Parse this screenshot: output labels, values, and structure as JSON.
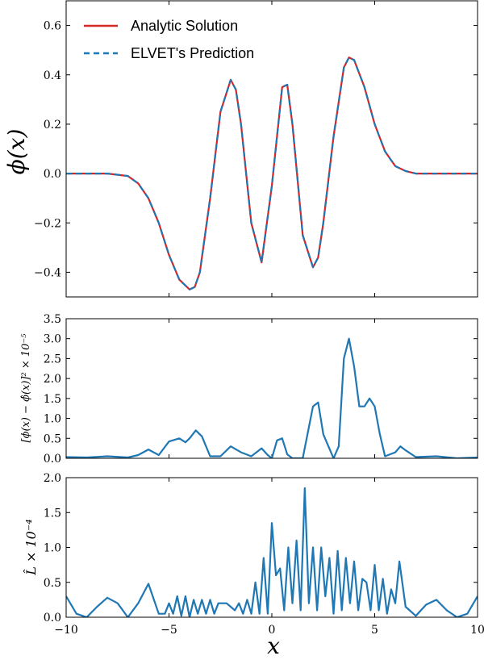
{
  "chart_data": [
    {
      "type": "line",
      "panel": "top",
      "ylabel": "ϕ(x)",
      "xlim": [
        -10,
        10
      ],
      "ylim": [
        -0.5,
        0.7
      ],
      "yticks": [
        "−0.4",
        "−0.2",
        "0.0",
        "0.2",
        "0.4",
        "0.6"
      ],
      "ytick_values": [
        -0.4,
        -0.2,
        0.0,
        0.2,
        0.4,
        0.6
      ],
      "legend_position": "top-left",
      "series": [
        {
          "name": "Analytic Solution",
          "color": "#d62728",
          "style": "solid",
          "x": [
            -10,
            -8,
            -7,
            -6.5,
            -6,
            -5.5,
            -5,
            -4.5,
            -4,
            -3.75,
            -3.5,
            -3,
            -2.5,
            -2,
            -1.75,
            -1.5,
            -1,
            -0.5,
            0,
            0.5,
            0.75,
            1,
            1.5,
            2,
            2.25,
            2.5,
            3,
            3.5,
            3.75,
            4,
            4.5,
            5,
            5.5,
            6,
            6.5,
            7,
            8,
            10
          ],
          "y": [
            0.0,
            0.0,
            -0.01,
            -0.04,
            -0.1,
            -0.2,
            -0.33,
            -0.43,
            -0.47,
            -0.46,
            -0.4,
            -0.1,
            0.25,
            0.38,
            0.34,
            0.2,
            -0.2,
            -0.36,
            -0.05,
            0.35,
            0.36,
            0.2,
            -0.25,
            -0.38,
            -0.34,
            -0.2,
            0.15,
            0.43,
            0.47,
            0.46,
            0.35,
            0.2,
            0.09,
            0.03,
            0.01,
            0.0,
            0.0,
            0.0
          ]
        },
        {
          "name": "ELVET's Prediction",
          "color": "#1f77b4",
          "style": "dashed",
          "x": [
            -10,
            -8,
            -7,
            -6.5,
            -6,
            -5.5,
            -5,
            -4.5,
            -4,
            -3.75,
            -3.5,
            -3,
            -2.5,
            -2,
            -1.75,
            -1.5,
            -1,
            -0.5,
            0,
            0.5,
            0.75,
            1,
            1.5,
            2,
            2.25,
            2.5,
            3,
            3.5,
            3.75,
            4,
            4.5,
            5,
            5.5,
            6,
            6.5,
            7,
            8,
            10
          ],
          "y": [
            0.0,
            0.0,
            -0.01,
            -0.04,
            -0.1,
            -0.2,
            -0.33,
            -0.43,
            -0.47,
            -0.46,
            -0.4,
            -0.1,
            0.25,
            0.38,
            0.34,
            0.2,
            -0.2,
            -0.36,
            -0.05,
            0.35,
            0.36,
            0.2,
            -0.25,
            -0.38,
            -0.34,
            -0.2,
            0.15,
            0.43,
            0.47,
            0.46,
            0.35,
            0.2,
            0.09,
            0.03,
            0.01,
            0.0,
            0.0,
            0.0
          ]
        }
      ]
    },
    {
      "type": "line",
      "panel": "middle",
      "ylabel": "[ϕ(x) − ϕ̂(x)]² × 10⁻⁵",
      "xlim": [
        -10,
        10
      ],
      "ylim": [
        0,
        3.5
      ],
      "yticks": [
        "0.0",
        "0.5",
        "1.0",
        "1.5",
        "2.0",
        "2.5",
        "3.0",
        "3.5"
      ],
      "ytick_values": [
        0,
        0.5,
        1.0,
        1.5,
        2.0,
        2.5,
        3.0,
        3.5
      ],
      "series": [
        {
          "color": "#1f77b4",
          "x": [
            -10,
            -9,
            -8,
            -7,
            -6.5,
            -6,
            -5.5,
            -5,
            -4.5,
            -4.2,
            -4,
            -3.7,
            -3.4,
            -3,
            -2.5,
            -2,
            -1.5,
            -1,
            -0.75,
            -0.5,
            -0.2,
            0,
            0.25,
            0.5,
            0.75,
            1,
            1.5,
            2,
            2.25,
            2.5,
            3,
            3.25,
            3.5,
            3.75,
            4,
            4.25,
            4.5,
            4.75,
            5,
            5.25,
            5.5,
            6,
            6.25,
            6.5,
            7,
            8,
            9,
            10
          ],
          "y": [
            0.03,
            0.02,
            0.05,
            0.02,
            0.08,
            0.22,
            0.08,
            0.42,
            0.5,
            0.4,
            0.5,
            0.7,
            0.55,
            0.05,
            0.05,
            0.3,
            0.15,
            0.05,
            0.15,
            0.25,
            0.08,
            0.0,
            0.45,
            0.5,
            0.1,
            0.0,
            0.0,
            1.3,
            1.4,
            0.6,
            0.0,
            0.3,
            2.5,
            3.0,
            2.3,
            1.3,
            1.3,
            1.5,
            1.3,
            0.6,
            0.05,
            0.15,
            0.3,
            0.2,
            0.03,
            0.05,
            0.0,
            0.02
          ]
        }
      ]
    },
    {
      "type": "line",
      "panel": "bottom",
      "ylabel": "L̂ × 10⁻⁴",
      "xlabel": "x",
      "xlim": [
        -10,
        10
      ],
      "ylim": [
        0,
        2.0
      ],
      "xticks": [
        "−10",
        "−5",
        "0",
        "5",
        "10"
      ],
      "xtick_values": [
        -10,
        -5,
        0,
        5,
        10
      ],
      "yticks": [
        "0.0",
        "0.5",
        "1.0",
        "1.5",
        "2.0"
      ],
      "ytick_values": [
        0,
        0.5,
        1.0,
        1.5,
        2.0
      ],
      "series": [
        {
          "color": "#1f77b4",
          "x": [
            -10,
            -9.5,
            -9,
            -8.5,
            -8,
            -7.5,
            -7,
            -6.5,
            -6,
            -5.5,
            -5.2,
            -5,
            -4.8,
            -4.6,
            -4.4,
            -4.2,
            -4,
            -3.8,
            -3.6,
            -3.4,
            -3.2,
            -3,
            -2.8,
            -2.6,
            -2.4,
            -2.2,
            -2,
            -1.8,
            -1.6,
            -1.4,
            -1.2,
            -1,
            -0.8,
            -0.6,
            -0.4,
            -0.2,
            0,
            0.2,
            0.4,
            0.6,
            0.8,
            1,
            1.2,
            1.4,
            1.6,
            1.8,
            2,
            2.2,
            2.4,
            2.6,
            2.8,
            3,
            3.2,
            3.4,
            3.6,
            3.8,
            4,
            4.2,
            4.4,
            4.6,
            4.8,
            5,
            5.2,
            5.4,
            5.6,
            5.8,
            6,
            6.2,
            6.5,
            7,
            7.5,
            8,
            8.5,
            9,
            9.5,
            10
          ],
          "y": [
            0.3,
            0.05,
            0.0,
            0.15,
            0.28,
            0.2,
            0.0,
            0.2,
            0.48,
            0.05,
            0.05,
            0.2,
            0.05,
            0.3,
            0.02,
            0.3,
            0.0,
            0.25,
            0.05,
            0.25,
            0.05,
            0.25,
            0.05,
            0.2,
            0.2,
            0.2,
            0.15,
            0.1,
            0.2,
            0.05,
            0.25,
            0.05,
            0.5,
            0.05,
            0.85,
            0.05,
            1.35,
            0.6,
            0.7,
            0.1,
            1.0,
            0.2,
            1.1,
            0.1,
            1.85,
            0.2,
            1.0,
            0.1,
            1.0,
            0.3,
            0.85,
            0.05,
            0.95,
            0.1,
            0.85,
            0.2,
            0.8,
            0.1,
            0.55,
            0.5,
            0.1,
            0.75,
            0.1,
            0.55,
            0.05,
            0.4,
            0.2,
            0.8,
            0.15,
            0.02,
            0.18,
            0.25,
            0.1,
            0.0,
            0.05,
            0.3
          ]
        }
      ]
    }
  ]
}
